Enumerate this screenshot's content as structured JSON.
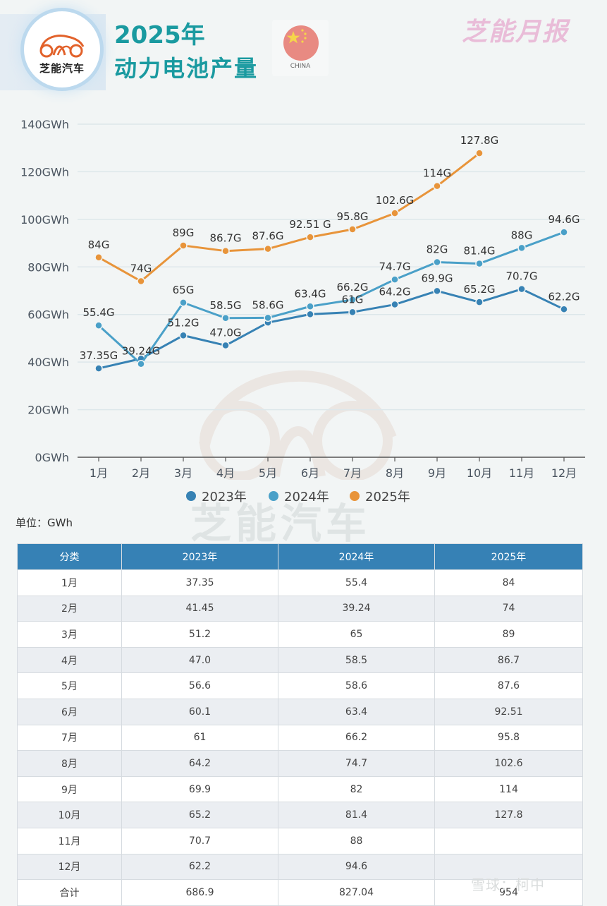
{
  "header": {
    "logo_text": "芝能汽车",
    "title_year": "2025年",
    "title_main": "动力电池产量",
    "flag_label": "CHINA",
    "brand": "芝能月报"
  },
  "colors": {
    "series_2023": "#3782b4",
    "series_2024": "#4aa0c8",
    "series_2025": "#e8943a",
    "title": "#1a9aa0",
    "table_header": "#3681b5",
    "brand": "#e9bcd8"
  },
  "chart_data": {
    "type": "line",
    "title": "2025年 动力电池产量",
    "xlabel": "",
    "ylabel": "",
    "categories": [
      "1月",
      "2月",
      "3月",
      "4月",
      "5月",
      "6月",
      "7月",
      "8月",
      "9月",
      "10月",
      "11月",
      "12月"
    ],
    "ylim": [
      0,
      140
    ],
    "yticks": [
      0,
      20,
      40,
      60,
      80,
      100,
      120,
      140
    ],
    "ytick_labels": [
      "0GWh",
      "20GWh",
      "40GWh",
      "60GWh",
      "80GWh",
      "100GWh",
      "120GWh",
      "140GWh"
    ],
    "grid": true,
    "legend_position": "bottom-center",
    "series": [
      {
        "name": "2023年",
        "color": "#3782b4",
        "values": [
          37.35,
          41.45,
          51.2,
          47.0,
          56.6,
          60.1,
          61,
          64.2,
          69.9,
          65.2,
          70.7,
          62.2
        ],
        "labels": [
          "37.35G",
          "",
          "51.2G",
          "47.0G",
          "",
          "",
          "61G",
          "64.2G",
          "69.9G",
          "65.2G",
          "70.7G",
          "62.2G"
        ]
      },
      {
        "name": "2024年",
        "color": "#4aa0c8",
        "values": [
          55.4,
          39.24,
          65,
          58.5,
          58.6,
          63.4,
          66.2,
          74.7,
          82,
          81.4,
          88,
          94.6
        ],
        "labels": [
          "55.4G",
          "39.24G",
          "65G",
          "58.5G",
          "58.6G",
          "63.4G",
          "66.2G",
          "74.7G",
          "82G",
          "81.4G",
          "88G",
          "94.6G"
        ]
      },
      {
        "name": "2025年",
        "color": "#e8943a",
        "values": [
          84,
          74,
          89,
          86.7,
          87.6,
          92.51,
          95.8,
          102.6,
          114,
          127.8,
          null,
          null
        ],
        "labels": [
          "84G",
          "74G",
          "89G",
          "86.7G",
          "87.6G",
          "92.51 G",
          "95.8G",
          "102.6G",
          "114G",
          "127.8G",
          "",
          ""
        ]
      }
    ]
  },
  "unit_label": "单位：GWh",
  "watermark": "芝能汽车",
  "table": {
    "headers": [
      "分类",
      "2023年",
      "2024年",
      "2025年"
    ],
    "rows": [
      [
        "1月",
        "37.35",
        "55.4",
        "84"
      ],
      [
        "2月",
        "41.45",
        "39.24",
        "74"
      ],
      [
        "3月",
        "51.2",
        "65",
        "89"
      ],
      [
        "4月",
        "47.0",
        "58.5",
        "86.7"
      ],
      [
        "5月",
        "56.6",
        "58.6",
        "87.6"
      ],
      [
        "6月",
        "60.1",
        "63.4",
        "92.51"
      ],
      [
        "7月",
        "61",
        "66.2",
        "95.8"
      ],
      [
        "8月",
        "64.2",
        "74.7",
        "102.6"
      ],
      [
        "9月",
        "69.9",
        "82",
        "114"
      ],
      [
        "10月",
        "65.2",
        "81.4",
        "127.8"
      ],
      [
        "11月",
        "70.7",
        "88",
        ""
      ],
      [
        "12月",
        "62.2",
        "94.6",
        ""
      ],
      [
        "合计",
        "686.9",
        "827.04",
        "954"
      ]
    ]
  },
  "credit": "雪球：柯中"
}
